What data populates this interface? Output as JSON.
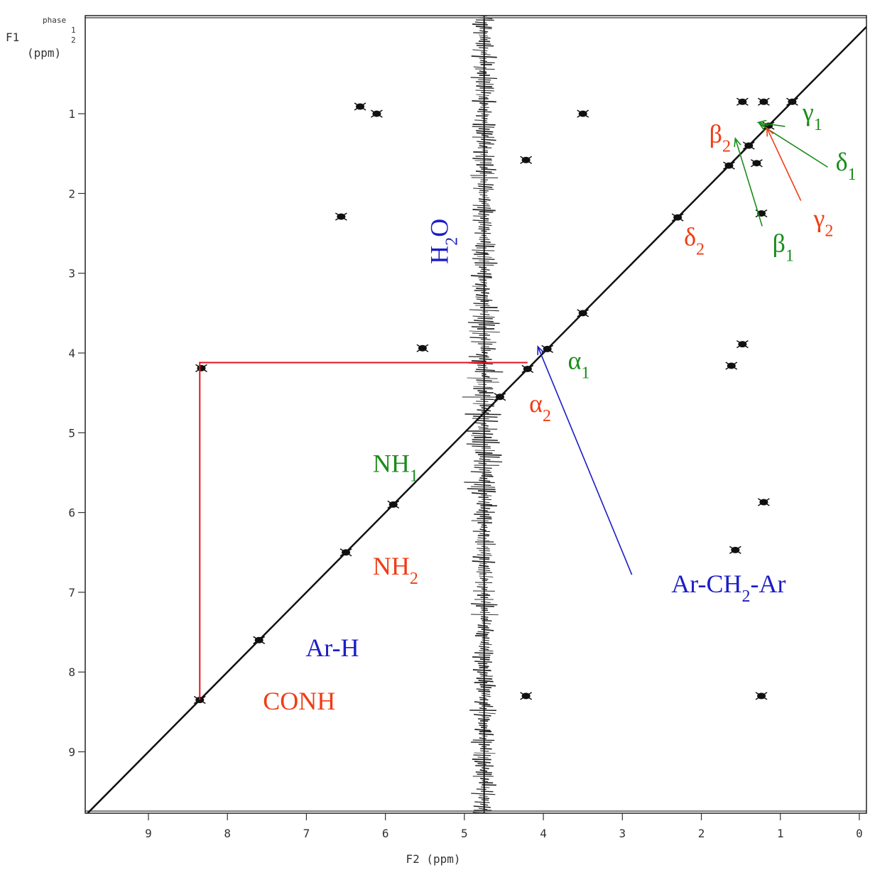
{
  "chart_data": {
    "type": "nmr2d",
    "x_label": "F2 (ppm)",
    "y_label": [
      "F1",
      "(ppm)"
    ],
    "phase_label": [
      "phase",
      "1",
      "2"
    ],
    "xlim": [
      9.8,
      -0.09
    ],
    "ylim": [
      -0.23,
      9.77
    ],
    "xticks": [
      9,
      8,
      7,
      6,
      5,
      4,
      3,
      2,
      1,
      0
    ],
    "yticks": [
      1,
      2,
      3,
      4,
      5,
      6,
      7,
      8,
      9
    ],
    "diagonal": true,
    "solvent_x": 4.75,
    "series": [
      {
        "name": "diagonal peaks",
        "color": "#111111",
        "x": [
          8.35,
          7.6,
          6.5,
          5.9,
          4.55,
          4.2,
          3.95,
          3.5,
          2.3,
          1.65,
          1.4,
          1.15,
          0.85
        ],
        "y": [
          8.35,
          7.6,
          6.5,
          5.9,
          4.55,
          4.2,
          3.95,
          3.5,
          2.3,
          1.65,
          1.4,
          1.15,
          0.85
        ]
      },
      {
        "name": "cross peaks",
        "color": "#111111",
        "x": [
          6.32,
          6.11,
          5.53,
          4.22,
          4.22,
          3.5,
          1.48,
          1.62,
          1.24,
          1.3,
          1.48,
          1.21,
          1.21,
          1.57,
          1.24,
          8.33,
          6.56
        ],
        "y": [
          0.91,
          1.0,
          3.94,
          1.58,
          8.3,
          1.0,
          3.89,
          4.16,
          2.25,
          1.62,
          0.85,
          0.85,
          5.87,
          6.47,
          8.3,
          4.19,
          2.29
        ]
      }
    ],
    "connection": {
      "color": "#e0141e",
      "x": [
        8.35,
        8.35,
        4.2
      ],
      "y": [
        8.35,
        4.12,
        4.12
      ]
    },
    "annotations": [
      {
        "segments": [
          {
            "t": "H"
          },
          {
            "t": "2",
            "sub": true
          },
          {
            "t": "O"
          }
        ],
        "x": 5.21,
        "y": 2.6,
        "color": "#1c1cc8",
        "vertical": true
      },
      {
        "segments": [
          {
            "t": "γ"
          },
          {
            "t": "1",
            "sub": true
          }
        ],
        "x": 0.72,
        "y": 1.09,
        "color": "#1a8c1a"
      },
      {
        "segments": [
          {
            "t": "β"
          },
          {
            "t": "2",
            "sub": true
          }
        ],
        "x": 1.9,
        "y": 1.36,
        "color": "#f03c14"
      },
      {
        "segments": [
          {
            "t": "δ"
          },
          {
            "t": "1",
            "sub": true
          }
        ],
        "x": 0.3,
        "y": 1.71,
        "color": "#1a8c1a"
      },
      {
        "segments": [
          {
            "t": "γ"
          },
          {
            "t": "2",
            "sub": true
          }
        ],
        "x": 0.58,
        "y": 2.42,
        "color": "#f03c14"
      },
      {
        "segments": [
          {
            "t": "β"
          },
          {
            "t": "1",
            "sub": true
          }
        ],
        "x": 1.1,
        "y": 2.73,
        "color": "#1a8c1a"
      },
      {
        "segments": [
          {
            "t": "δ"
          },
          {
            "t": "2",
            "sub": true
          }
        ],
        "x": 2.22,
        "y": 2.65,
        "color": "#f03c14"
      },
      {
        "segments": [
          {
            "t": "α"
          },
          {
            "t": "1",
            "sub": true
          }
        ],
        "x": 3.69,
        "y": 4.2,
        "color": "#1a8c1a"
      },
      {
        "segments": [
          {
            "t": "α"
          },
          {
            "t": "2",
            "sub": true
          }
        ],
        "x": 4.18,
        "y": 4.74,
        "color": "#f03c14"
      },
      {
        "segments": [
          {
            "t": "NH"
          },
          {
            "t": "1",
            "sub": true
          }
        ],
        "x": 6.16,
        "y": 5.49,
        "color": "#1a8c1a"
      },
      {
        "segments": [
          {
            "t": "NH"
          },
          {
            "t": "2",
            "sub": true
          }
        ],
        "x": 6.16,
        "y": 6.78,
        "color": "#f03c14"
      },
      {
        "segments": [
          {
            "t": "Ar-CH"
          },
          {
            "t": "2",
            "sub": true
          },
          {
            "t": "-Ar"
          }
        ],
        "x": 2.38,
        "y": 7.0,
        "color": "#1c1cc8"
      },
      {
        "segments": [
          {
            "t": "Ar-H"
          }
        ],
        "x": 7.01,
        "y": 7.8,
        "color": "#1c1cc8"
      },
      {
        "segments": [
          {
            "t": "CONH"
          }
        ],
        "x": 7.55,
        "y": 8.47,
        "color": "#f03c14"
      }
    ],
    "arrows": [
      {
        "color": "#1a8c1a",
        "from": [
          0.94,
          1.16
        ],
        "to": [
          1.28,
          1.11
        ]
      },
      {
        "color": "#1a8c1a",
        "from": [
          0.4,
          1.67
        ],
        "to": [
          1.26,
          1.13
        ]
      },
      {
        "color": "#f03c14",
        "from": [
          0.74,
          2.09
        ],
        "to": [
          1.17,
          1.18
        ]
      },
      {
        "color": "#1a8c1a",
        "from": [
          1.23,
          2.41
        ],
        "to": [
          1.57,
          1.31
        ]
      },
      {
        "color": "#1c1cc8",
        "from": [
          2.88,
          6.78
        ],
        "to": [
          4.07,
          3.92
        ]
      }
    ]
  }
}
